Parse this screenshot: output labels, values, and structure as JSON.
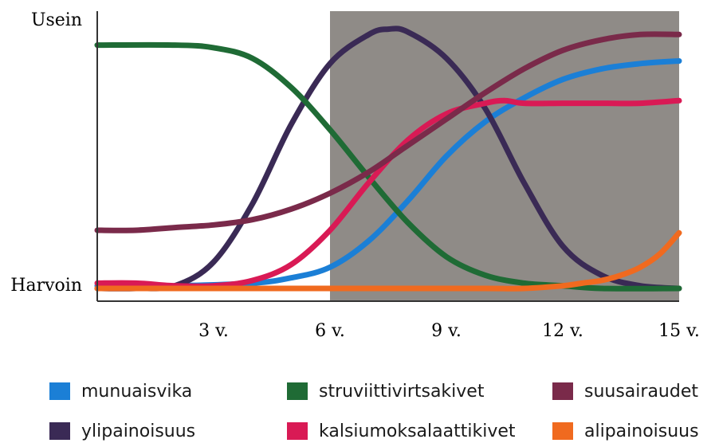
{
  "chart_data": {
    "type": "line",
    "y_labels": {
      "top": "Usein",
      "bottom": "Harvoin"
    },
    "x_ticks": [
      "3 v.",
      "6 v.",
      "9 v.",
      "12 v.",
      "15 v."
    ],
    "x_tick_values": [
      3,
      6,
      9,
      12,
      15
    ],
    "xlim": [
      0,
      15
    ],
    "ylim": [
      0,
      1
    ],
    "shaded_region": {
      "from": 6,
      "to": 15,
      "color": "#8f8b87"
    },
    "series": [
      {
        "name": "munuaisvika",
        "color": "#1b7fd6",
        "x": [
          0,
          2,
          4,
          5,
          6,
          7,
          8,
          9,
          10,
          11,
          12,
          13,
          14,
          15
        ],
        "y": [
          0.01,
          0.01,
          0.02,
          0.04,
          0.08,
          0.18,
          0.33,
          0.5,
          0.63,
          0.72,
          0.79,
          0.83,
          0.85,
          0.86
        ]
      },
      {
        "name": "ylipainoisuus",
        "color": "#3a2a55",
        "x": [
          0,
          1,
          2,
          3,
          4,
          5,
          6,
          7,
          7.5,
          8,
          9,
          10,
          11,
          12,
          13,
          14,
          15
        ],
        "y": [
          0.0,
          0.0,
          0.01,
          0.1,
          0.32,
          0.62,
          0.85,
          0.96,
          0.98,
          0.97,
          0.87,
          0.68,
          0.4,
          0.16,
          0.05,
          0.01,
          0.0
        ]
      },
      {
        "name": "struviittivirtsakivet",
        "color": "#1f6b35",
        "x": [
          0,
          2,
          3,
          4,
          5,
          6,
          7,
          8,
          9,
          10,
          11,
          12,
          13,
          15
        ],
        "y": [
          0.92,
          0.92,
          0.91,
          0.87,
          0.76,
          0.6,
          0.42,
          0.25,
          0.12,
          0.05,
          0.02,
          0.01,
          0.0,
          0.0
        ]
      },
      {
        "name": "kalsiumoksalaattikivet",
        "color": "#d91a55",
        "x": [
          0,
          1,
          2,
          3,
          4,
          5,
          6,
          7,
          8,
          9,
          10,
          10.5,
          11,
          12,
          13,
          14,
          15
        ],
        "y": [
          0.02,
          0.02,
          0.01,
          0.01,
          0.03,
          0.09,
          0.22,
          0.4,
          0.56,
          0.66,
          0.7,
          0.71,
          0.7,
          0.7,
          0.7,
          0.7,
          0.71
        ]
      },
      {
        "name": "suusairaudet",
        "color": "#7a2a4a",
        "x": [
          0,
          1,
          2,
          3,
          4,
          5,
          6,
          7,
          8,
          9,
          10,
          11,
          12,
          13,
          14,
          15
        ],
        "y": [
          0.22,
          0.22,
          0.23,
          0.24,
          0.26,
          0.3,
          0.36,
          0.44,
          0.54,
          0.64,
          0.74,
          0.83,
          0.9,
          0.94,
          0.96,
          0.96
        ]
      },
      {
        "name": "alipainoisuus",
        "color": "#f06a1f",
        "x": [
          0,
          2,
          4,
          6,
          8,
          10,
          11,
          12,
          12.5,
          13,
          13.5,
          14,
          14.5,
          15
        ],
        "y": [
          0.0,
          0.0,
          0.0,
          0.0,
          0.0,
          0.0,
          0.0,
          0.01,
          0.02,
          0.03,
          0.05,
          0.08,
          0.13,
          0.21
        ]
      }
    ],
    "legend": [
      {
        "label": "munuaisvika",
        "color": "#1b7fd6"
      },
      {
        "label": "struviittivirtsakivet",
        "color": "#1f6b35"
      },
      {
        "label": "suusairaudet",
        "color": "#7a2a4a"
      },
      {
        "label": "ylipainoisuus",
        "color": "#3a2a55"
      },
      {
        "label": "kalsiumoksalaattikivet",
        "color": "#d91a55"
      },
      {
        "label": "alipainoisuus",
        "color": "#f06a1f"
      }
    ],
    "grid": false,
    "legend_placement": "bottom"
  }
}
